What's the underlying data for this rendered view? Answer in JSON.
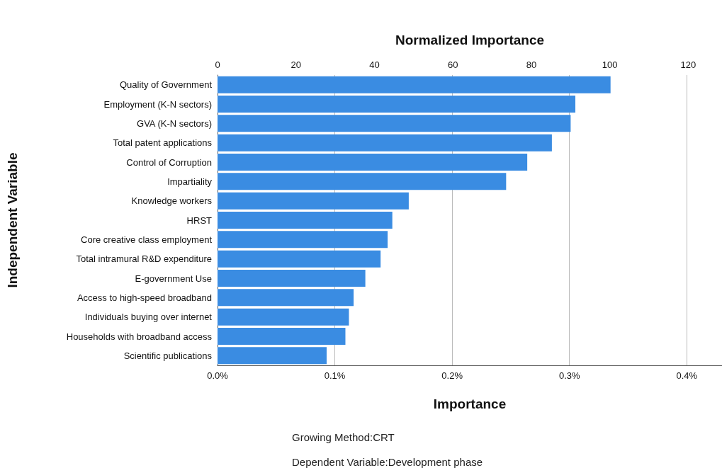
{
  "chart_data": {
    "type": "bar",
    "orientation": "horizontal",
    "xlabel": "Importance",
    "x2label": "Normalized Importance",
    "ylabel": "Independent Variable",
    "categories": [
      "Quality of Government",
      "Employment (K-N sectors)",
      "GVA (K-N sectors)",
      "Total patent applications",
      "Control of Corruption",
      "Impartiality",
      "Knowledge workers",
      "HRST",
      "Core creative class employment",
      "Total intramural R&D expenditure",
      "E-government Use",
      "Access to high-speed broadband",
      "Individuals buying over internet",
      "Households with broadband access",
      "Scientific publications"
    ],
    "values": [
      0.335,
      0.305,
      0.301,
      0.285,
      0.264,
      0.246,
      0.163,
      0.149,
      0.145,
      0.139,
      0.126,
      0.116,
      0.112,
      0.109,
      0.093
    ],
    "color": "#3a8ce2",
    "xlim": [
      0,
      0.43
    ],
    "xticks": [
      {
        "value": 0,
        "label": "0.0%"
      },
      {
        "value": 0.1,
        "label": "0.1%"
      },
      {
        "value": 0.2,
        "label": "0.2%"
      },
      {
        "value": 0.3,
        "label": "0.3%"
      },
      {
        "value": 0.4,
        "label": "0.4%"
      }
    ],
    "x2lim": [
      0,
      128.6
    ],
    "x2ticks": [
      0,
      20,
      40,
      60,
      80,
      100,
      120
    ],
    "grid": "x",
    "annotations": [
      "Growing Method:CRT",
      "Dependent Variable:Development phase"
    ]
  }
}
